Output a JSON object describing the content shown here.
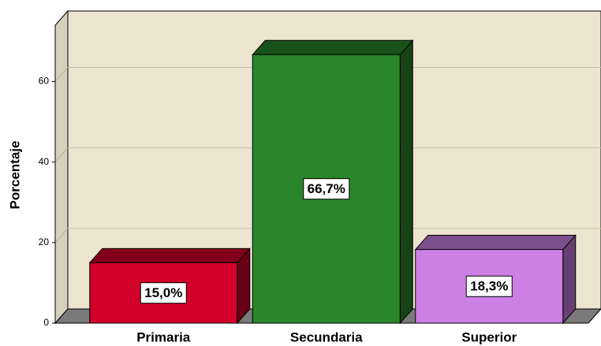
{
  "chart_data": {
    "type": "bar3d",
    "y_label": "Porcentaje",
    "categories": [
      "Primaria",
      "Secundaria",
      "Superior"
    ],
    "values": [
      15.0,
      66.7,
      18.3
    ],
    "value_labels": [
      "15,0%",
      "66,7%",
      "18,3%"
    ],
    "colors": [
      "#d3002b",
      "#2a862a",
      "#cc80e3"
    ],
    "ylim": [
      0,
      74
    ],
    "yticks": [
      0,
      20,
      40,
      60
    ],
    "grid": true
  }
}
